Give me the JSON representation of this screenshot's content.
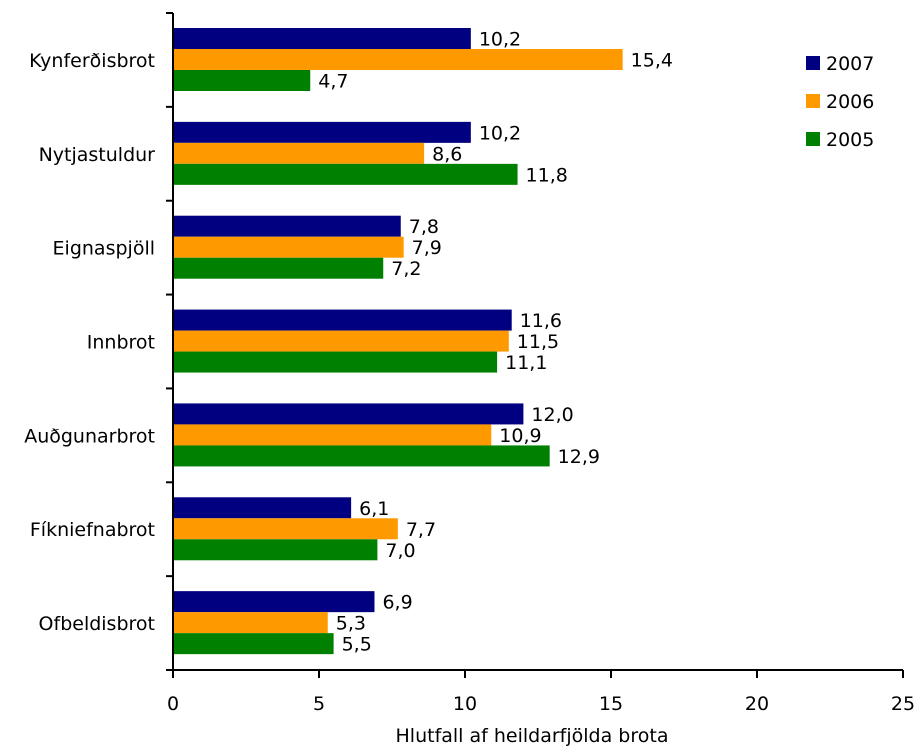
{
  "chart_data": {
    "type": "bar",
    "orientation": "horizontal",
    "categories": [
      "Kynferðisbrot",
      "Nytjastuldur",
      "Eignaspjöll",
      "Innbrot",
      "Auðgunarbrot",
      "Fíkniefnabrot",
      "Ofbeldisbrot"
    ],
    "series": [
      {
        "name": "2007",
        "color": "#000080",
        "values": [
          10.2,
          10.2,
          7.8,
          11.6,
          12.0,
          6.1,
          6.9
        ],
        "labels": [
          "10,2",
          "10,2",
          "7,8",
          "11,6",
          "12,0",
          "6,1",
          "6,9"
        ]
      },
      {
        "name": "2006",
        "color": "#FF9900",
        "values": [
          15.4,
          8.6,
          7.9,
          11.5,
          10.9,
          7.7,
          5.3
        ],
        "labels": [
          "15,4",
          "8,6",
          "7,9",
          "11,5",
          "10,9",
          "7,7",
          "5,3"
        ]
      },
      {
        "name": "2005",
        "color": "#008000",
        "values": [
          4.7,
          11.8,
          7.2,
          11.1,
          12.9,
          7.0,
          5.5
        ],
        "labels": [
          "4,7",
          "11,8",
          "7,2",
          "11,1",
          "12,9",
          "7,0",
          "5,5"
        ]
      }
    ],
    "xlabel": "Hlutfall af heildarfjölda brota",
    "ylabel": "",
    "xlim": [
      0,
      25
    ],
    "xticks": [
      "0",
      "5",
      "10",
      "15",
      "20",
      "25"
    ],
    "grid": false,
    "legend_position": "top-right"
  }
}
